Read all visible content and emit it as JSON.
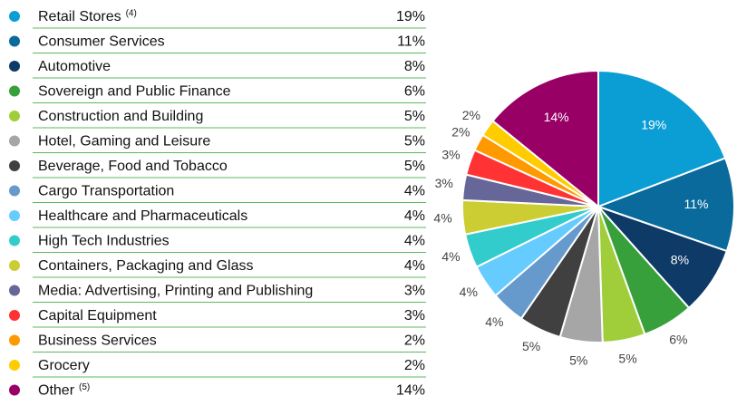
{
  "chart_data": {
    "type": "pie",
    "categories": [
      "Retail Stores",
      "Consumer Services",
      "Automotive",
      "Sovereign and Public Finance",
      "Construction and Building",
      "Hotel, Gaming and Leisure",
      "Beverage, Food and Tobacco",
      "Cargo Transportation",
      "Healthcare and Pharmaceuticals",
      "High Tech Industries",
      "Containers, Packaging and Glass",
      "Media: Advertising, Printing and Publishing",
      "Capital Equipment",
      "Business Services",
      "Grocery",
      "Other"
    ],
    "footnotes": [
      "(4)",
      null,
      null,
      null,
      null,
      null,
      null,
      null,
      null,
      null,
      null,
      null,
      null,
      null,
      null,
      "(5)"
    ],
    "values": [
      19,
      11,
      8,
      6,
      5,
      5,
      5,
      4,
      4,
      4,
      4,
      3,
      3,
      2,
      2,
      14
    ],
    "value_labels": [
      "19%",
      "11%",
      "8%",
      "6%",
      "5%",
      "5%",
      "5%",
      "4%",
      "4%",
      "4%",
      "4%",
      "3%",
      "3%",
      "2%",
      "2%",
      "14%"
    ],
    "colors": [
      "#0b9ed4",
      "#0a6a9c",
      "#0d3a66",
      "#37a03a",
      "#9fce3a",
      "#a6a6a6",
      "#404040",
      "#6699cc",
      "#66ccff",
      "#33cccc",
      "#cccc33",
      "#666699",
      "#ff3333",
      "#ff9900",
      "#ffcc00",
      "#990066"
    ]
  }
}
